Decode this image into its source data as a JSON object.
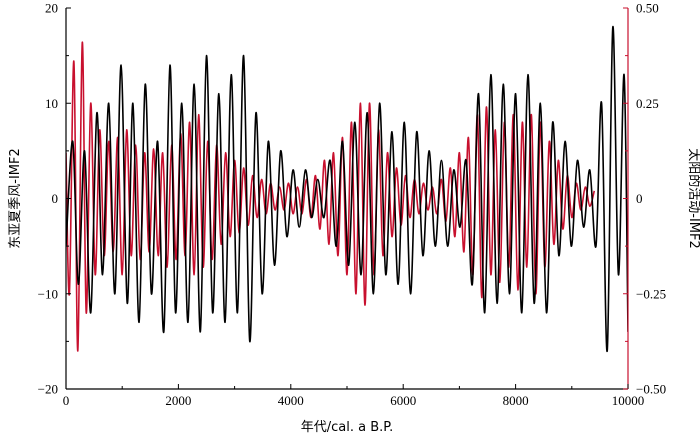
{
  "chart_data": {
    "type": "line",
    "xlabel": "年代/cal. a B.P.",
    "ylabel_left": "东亚夏季风-IMF2",
    "ylabel_right": "太阳的活动-IMF2",
    "xlim": [
      0,
      10000
    ],
    "ylim_left": [
      -20,
      20
    ],
    "ylim_right": [
      -0.5,
      0.5
    ],
    "x_ticks": [
      "0",
      "2000",
      "4000",
      "6000",
      "8000",
      "10000"
    ],
    "y_ticks_left": [
      "20",
      "10",
      "0",
      "−10",
      "−20"
    ],
    "y_ticks_right": [
      "0.50",
      "0.25",
      "0",
      "−0.25",
      "−0.50"
    ],
    "grid": false,
    "axis_colors": {
      "left": "#000000",
      "right": "#c8102e"
    },
    "series": [
      {
        "axis": "left",
        "color": "#000000",
        "x": [
          0,
          120,
          220,
          330,
          440,
          550,
          650,
          760,
          870,
          980,
          1090,
          1190,
          1300,
          1410,
          1520,
          1630,
          1740,
          1850,
          1950,
          2060,
          2170,
          2280,
          2390,
          2500,
          2610,
          2720,
          2830,
          2940,
          3050,
          3160,
          3270,
          3380,
          3490,
          3600,
          3710,
          3820,
          3930,
          4040,
          4150,
          4260,
          4370,
          4480,
          4590,
          4700,
          4810,
          4920,
          5030,
          5140,
          5250,
          5360,
          5470,
          5580,
          5690,
          5800,
          5910,
          6020,
          6130,
          6240,
          6350,
          6460,
          6570,
          6680,
          6790,
          6900,
          7010,
          7120,
          7230,
          7340,
          7450,
          7560,
          7670,
          7780,
          7890,
          8000,
          8110,
          8220,
          8330,
          8440,
          8550,
          8660,
          8770,
          8880,
          8990,
          9100,
          9210,
          9320,
          9430,
          9530,
          9630,
          9730,
          9830,
          9930,
          10000
        ],
        "values": [
          -5,
          6,
          -9,
          5,
          -12,
          9,
          -8,
          10,
          -10,
          14,
          -11,
          10,
          -13,
          12,
          -10,
          6,
          -14,
          14,
          -12,
          10,
          -13,
          12,
          -14,
          15,
          -12,
          11,
          -13,
          13,
          -12,
          15,
          -15,
          9,
          -10,
          6,
          -7,
          5,
          -4,
          3,
          -3,
          3,
          -2,
          2,
          -2,
          4,
          -5,
          6,
          -7,
          8,
          -8,
          9,
          -10,
          10,
          -8,
          7,
          -9,
          8,
          -10,
          7,
          -6,
          5,
          -5,
          4,
          -5,
          3,
          -3,
          4,
          -9,
          11,
          -12,
          13,
          -11,
          12,
          -10,
          11,
          -12,
          13,
          -11,
          10,
          -12,
          8,
          -6,
          6,
          -5,
          4,
          -3,
          3,
          -5,
          10,
          -16,
          18,
          -8,
          13,
          -14
        ]
      },
      {
        "axis": "right",
        "color": "#c8102e",
        "x": [
          0,
          60,
          140,
          210,
          290,
          360,
          440,
          520,
          600,
          680,
          760,
          840,
          920,
          1000,
          1080,
          1160,
          1240,
          1320,
          1400,
          1480,
          1560,
          1640,
          1720,
          1800,
          1880,
          1960,
          2040,
          2120,
          2200,
          2280,
          2360,
          2440,
          2520,
          2600,
          2680,
          2760,
          2840,
          2920,
          3000,
          3080,
          3160,
          3240,
          3320,
          3400,
          3480,
          3560,
          3640,
          3720,
          3800,
          3880,
          3960,
          4040,
          4120,
          4200,
          4280,
          4360,
          4440,
          4520,
          4600,
          4680,
          4760,
          4840,
          4920,
          5000,
          5080,
          5160,
          5240,
          5320,
          5400,
          5480,
          5560,
          5640,
          5720,
          5800,
          5880,
          5960,
          6040,
          6120,
          6200,
          6280,
          6360,
          6440,
          6520,
          6600,
          6680,
          6760,
          6840,
          6920,
          7000,
          7080,
          7160,
          7240,
          7320,
          7400,
          7480,
          7560,
          7640,
          7720,
          7800,
          7880,
          7960,
          8040,
          8120,
          8200,
          8280,
          8360,
          8440,
          8520,
          8600,
          8680,
          8760,
          8840,
          8920,
          9000,
          9080,
          9160,
          9240,
          9320,
          9400
        ],
        "values": [
          0.12,
          -0.25,
          0.36,
          -0.4,
          0.41,
          -0.3,
          0.25,
          -0.2,
          0.18,
          -0.15,
          0.15,
          -0.14,
          0.16,
          -0.2,
          0.18,
          -0.15,
          0.14,
          -0.16,
          0.12,
          -0.14,
          0.13,
          -0.15,
          0.12,
          -0.18,
          0.14,
          -0.16,
          0.17,
          -0.15,
          0.2,
          -0.2,
          0.22,
          -0.18,
          0.15,
          -0.16,
          0.14,
          -0.12,
          0.12,
          -0.1,
          0.1,
          -0.09,
          0.08,
          -0.07,
          0.06,
          -0.05,
          0.05,
          -0.04,
          0.04,
          -0.03,
          0.03,
          -0.03,
          0.04,
          -0.04,
          0.03,
          -0.04,
          0.05,
          -0.05,
          0.06,
          -0.08,
          0.1,
          -0.12,
          0.12,
          -0.15,
          0.16,
          -0.2,
          0.2,
          -0.25,
          0.25,
          -0.28,
          0.25,
          -0.2,
          0.18,
          -0.15,
          0.12,
          -0.1,
          0.08,
          -0.07,
          0.06,
          -0.05,
          0.05,
          -0.04,
          0.04,
          -0.03,
          0.03,
          -0.04,
          0.05,
          -0.06,
          0.08,
          -0.1,
          0.12,
          -0.14,
          0.16,
          -0.2,
          0.22,
          -0.26,
          0.24,
          -0.2,
          0.18,
          -0.22,
          0.2,
          -0.18,
          0.22,
          -0.24,
          0.2,
          -0.18,
          0.22,
          -0.25,
          0.2,
          -0.18,
          0.15,
          -0.12,
          0.1,
          -0.08,
          0.06,
          -0.05,
          0.04,
          -0.03,
          0.03,
          -0.02,
          0.02
        ]
      }
    ]
  }
}
